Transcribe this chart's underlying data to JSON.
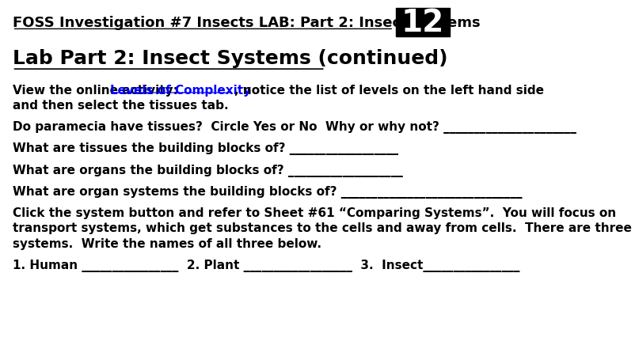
{
  "bg_color": "#ffffff",
  "header_text": "FOSS Investigation #7 Insects LAB: Part 2: Insect Systems",
  "page_number": "12",
  "title": "Lab Part 2: Insect Systems (continued)",
  "link_pre": "View the online activity:  ",
  "link_text": "Levels of Complexity",
  "link_post": ", notice the list of levels on the left hand side",
  "line2": "and then select the tissues tab.",
  "line3": "Do paramecia have tissues?  Circle Yes or No  Why or why not? ______________________",
  "line4": "What are tissues the building blocks of? __________________",
  "line5": "What are organs the building blocks of? ___________________",
  "line6": "What are organ systems the building blocks of? ______________________________",
  "line7": "Click the system button and refer to Sheet #61 “Comparing Systems”.  You will focus on",
  "line8": "transport systems, which get substances to the cells and away from cells.  There are three",
  "line9": "systems.  Write the names of all three below.",
  "line10": "1. Human ________________  2. Plant __________________  3.  Insect________________",
  "header_fontsize": 13,
  "page_num_fontsize": 28,
  "title_fontsize": 18,
  "body_fontsize": 11,
  "link_color": "#0000FF",
  "text_color": "#000000",
  "page_bg": "#000000",
  "page_fg": "#ffffff"
}
